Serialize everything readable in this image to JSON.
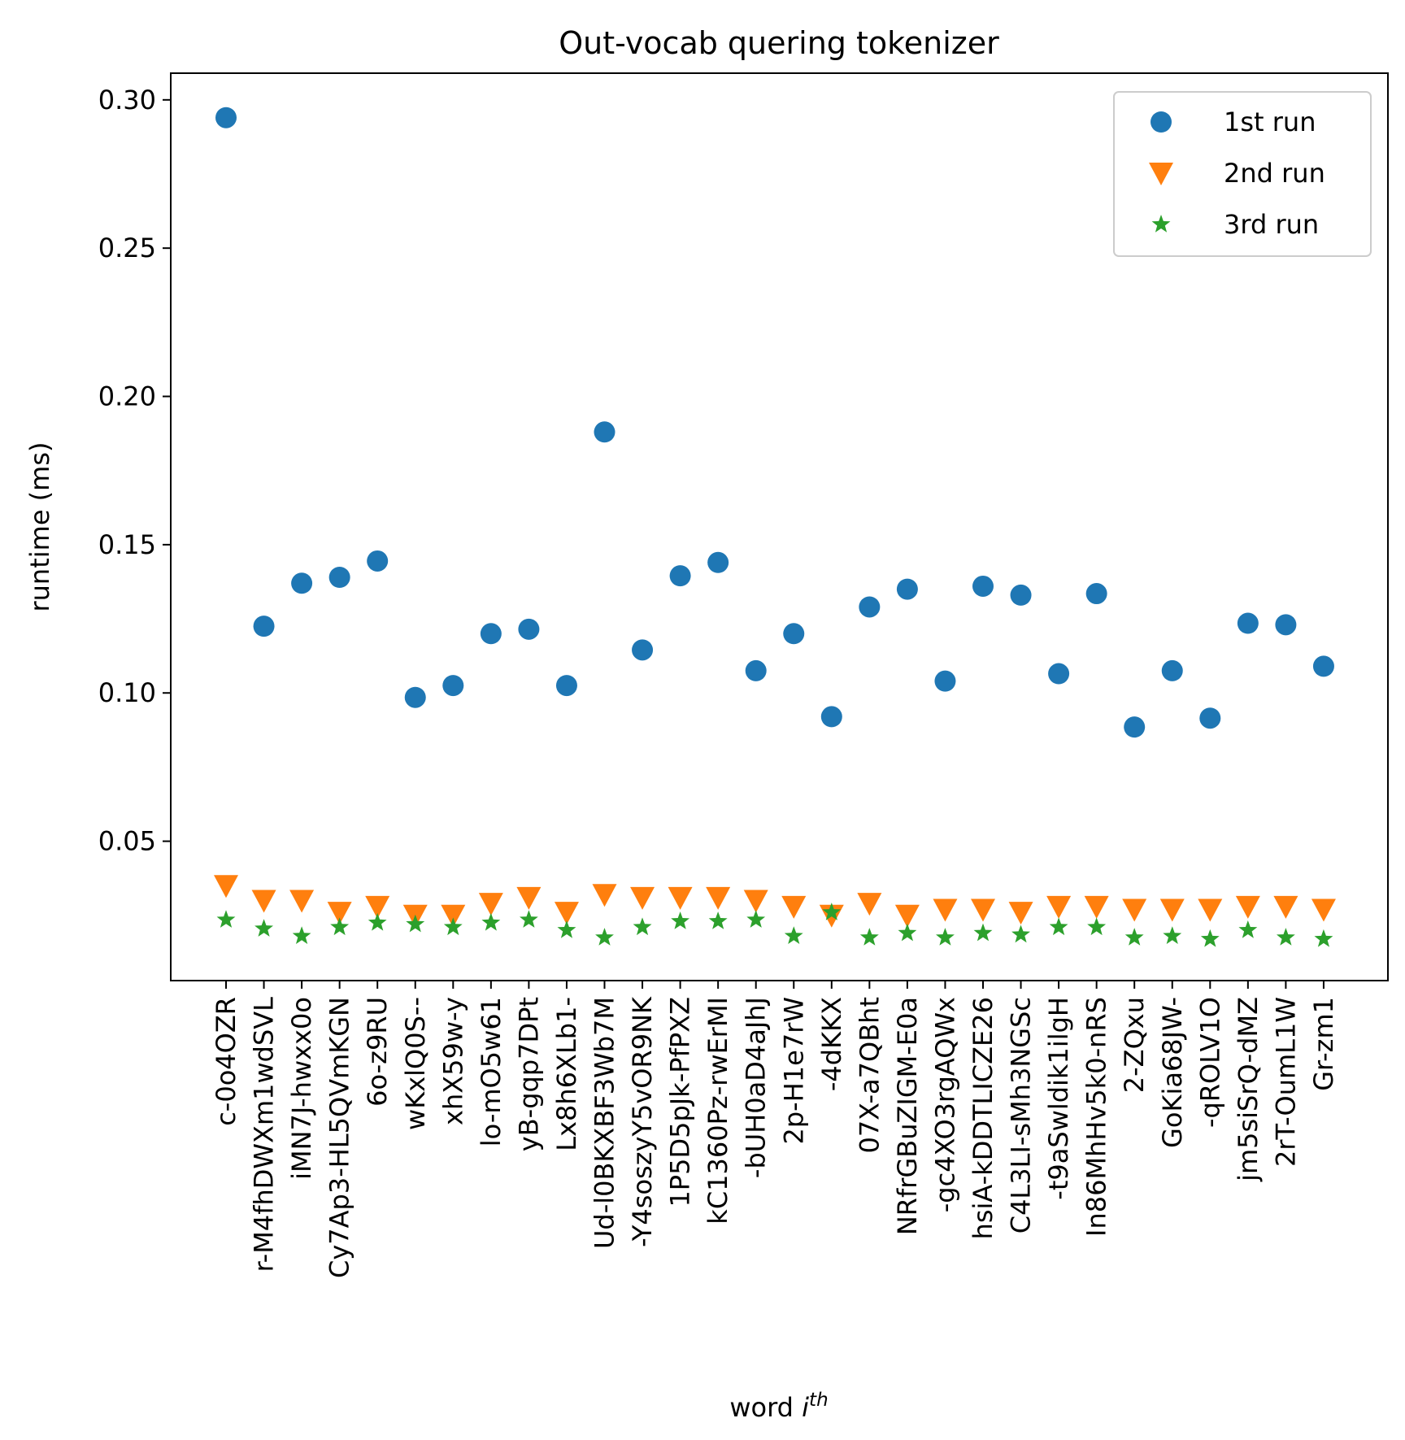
{
  "chart_data": {
    "type": "scatter",
    "title": "Out-vocab quering tokenizer",
    "xlabel": "word",
    "xlabel_sup": "th",
    "xlabel_italic": "i",
    "ylabel": "runtime (ms)",
    "ylim": [
      0.003,
      0.309
    ],
    "yticks": [
      0.05,
      0.1,
      0.15,
      0.2,
      0.25,
      0.3
    ],
    "ytick_labels": [
      "0.05",
      "0.10",
      "0.15",
      "0.20",
      "0.25",
      "0.30"
    ],
    "legend_position": "top-right",
    "categories": [
      "c-0o4OZR",
      "r-M4fhDWXm1wdSVL",
      "iMN7J-hwxx0o",
      "Cy7Ap3-HL5QVmKGN",
      "6o-z9RU",
      "wKxlQ0S--",
      "xhX59w-y",
      "lo-mO5w61",
      "yB-gqp7DPt",
      "Lx8h6XLb1-",
      "Ud-l0BKXBF3Wb7M",
      "-Y4soszyY5vOR9NK",
      "1P5D5pJk-PfPXZ",
      "kC1360Pz-rwErMI",
      "-bUH0aD4aJhJ",
      "2p-H1e7rW",
      "-4dKKX",
      "07X-a7QBht",
      "NRfrGBuZIGM-E0a",
      "-gc4XO3rgAQWx",
      "hsiA-kDDTLICZE26",
      "C4L3LI-sMh3NGSc",
      "-t9aSwldik1ilgH",
      "In86MhHv5k0-nRS",
      "2-ZQxu",
      "GoKia68JW-",
      "-qROLV1O",
      "jm5siSrQ-dMZ",
      "2rT-OumL1W",
      "Gr-zm1"
    ],
    "series": [
      {
        "name": "1st run",
        "marker": "circle",
        "color": "#1f77b4",
        "values": [
          0.294,
          0.1225,
          0.137,
          0.139,
          0.1445,
          0.0985,
          0.1025,
          0.12,
          0.1215,
          0.1025,
          0.188,
          0.1145,
          0.1395,
          0.144,
          0.1075,
          0.12,
          0.092,
          0.129,
          0.135,
          0.104,
          0.136,
          0.133,
          0.1065,
          0.1335,
          0.0885,
          0.1075,
          0.0915,
          0.1235,
          0.123,
          0.109
        ]
      },
      {
        "name": "2nd run",
        "marker": "triangle-down",
        "color": "#ff7f0e",
        "values": [
          0.035,
          0.03,
          0.03,
          0.026,
          0.028,
          0.025,
          0.025,
          0.029,
          0.031,
          0.026,
          0.032,
          0.031,
          0.031,
          0.031,
          0.03,
          0.028,
          0.025,
          0.029,
          0.025,
          0.027,
          0.027,
          0.026,
          0.028,
          0.028,
          0.027,
          0.027,
          0.027,
          0.028,
          0.028,
          0.027
        ]
      },
      {
        "name": "3rd run",
        "marker": "star",
        "color": "#2ca02c",
        "values": [
          0.0235,
          0.0205,
          0.018,
          0.021,
          0.0225,
          0.022,
          0.021,
          0.0225,
          0.0235,
          0.02,
          0.0175,
          0.021,
          0.023,
          0.023,
          0.0235,
          0.018,
          0.026,
          0.0175,
          0.019,
          0.0175,
          0.019,
          0.0185,
          0.021,
          0.021,
          0.0175,
          0.018,
          0.017,
          0.02,
          0.0175,
          0.017
        ]
      }
    ]
  }
}
